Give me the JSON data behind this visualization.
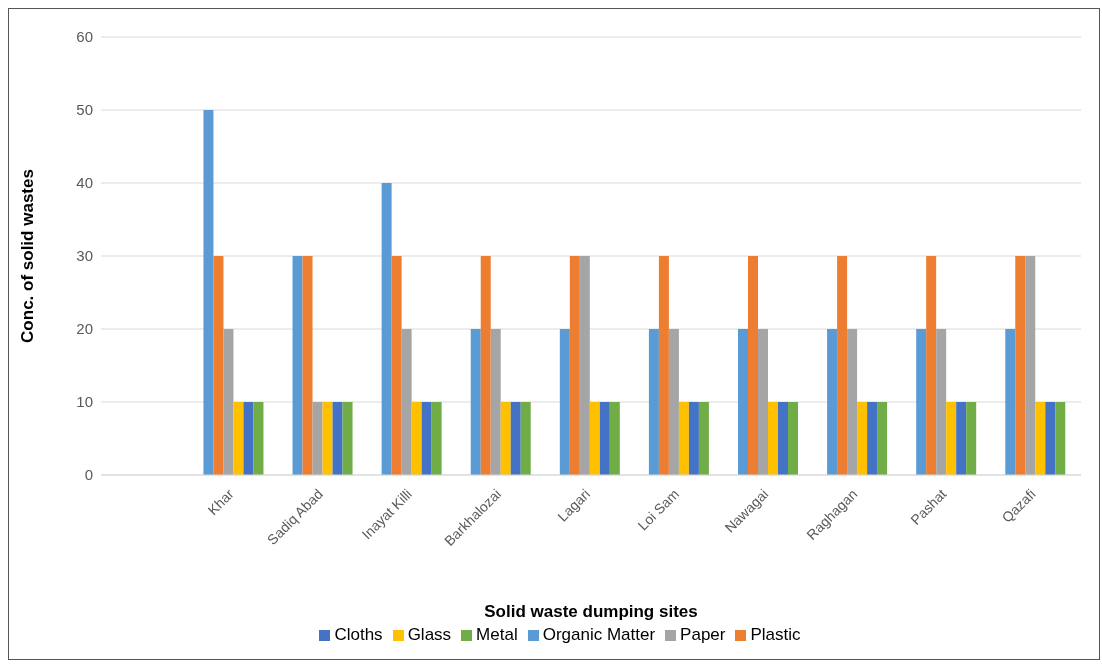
{
  "chart_data": {
    "type": "bar",
    "xlabel": "Solid waste dumping sites",
    "ylabel": "Conc. of solid wastes",
    "categories": [
      null,
      "Khar",
      "Sadiq Abad",
      "Inayat Killi",
      "Barkhalozai",
      "Lagari",
      "Loi Sam",
      "Nawagai",
      "Raghagan",
      "Pashat",
      "Qazafi"
    ],
    "series": [
      {
        "name": "Organic Matter",
        "color": "#5b9bd5",
        "values": [
          null,
          50,
          30,
          40,
          20,
          20,
          20,
          20,
          20,
          20,
          20
        ]
      },
      {
        "name": "Plastic",
        "color": "#ed7d31",
        "values": [
          null,
          30,
          30,
          30,
          30,
          30,
          30,
          30,
          30,
          30,
          30
        ]
      },
      {
        "name": "Paper",
        "color": "#a5a5a5",
        "values": [
          null,
          20,
          10,
          20,
          20,
          30,
          20,
          20,
          20,
          20,
          30
        ]
      },
      {
        "name": "Glass",
        "color": "#ffc000",
        "values": [
          null,
          10,
          10,
          10,
          10,
          10,
          10,
          10,
          10,
          10,
          10
        ]
      },
      {
        "name": "Cloths",
        "color": "#4472c4",
        "values": [
          null,
          10,
          10,
          10,
          10,
          10,
          10,
          10,
          10,
          10,
          10
        ]
      },
      {
        "name": "Metal",
        "color": "#70ad47",
        "values": [
          null,
          10,
          10,
          10,
          10,
          10,
          10,
          10,
          10,
          10,
          10
        ]
      }
    ],
    "ylim": [
      0,
      60
    ],
    "yticks": [
      0,
      10,
      20,
      30,
      40,
      50,
      60
    ],
    "grid": "y",
    "legend": "bottom"
  }
}
